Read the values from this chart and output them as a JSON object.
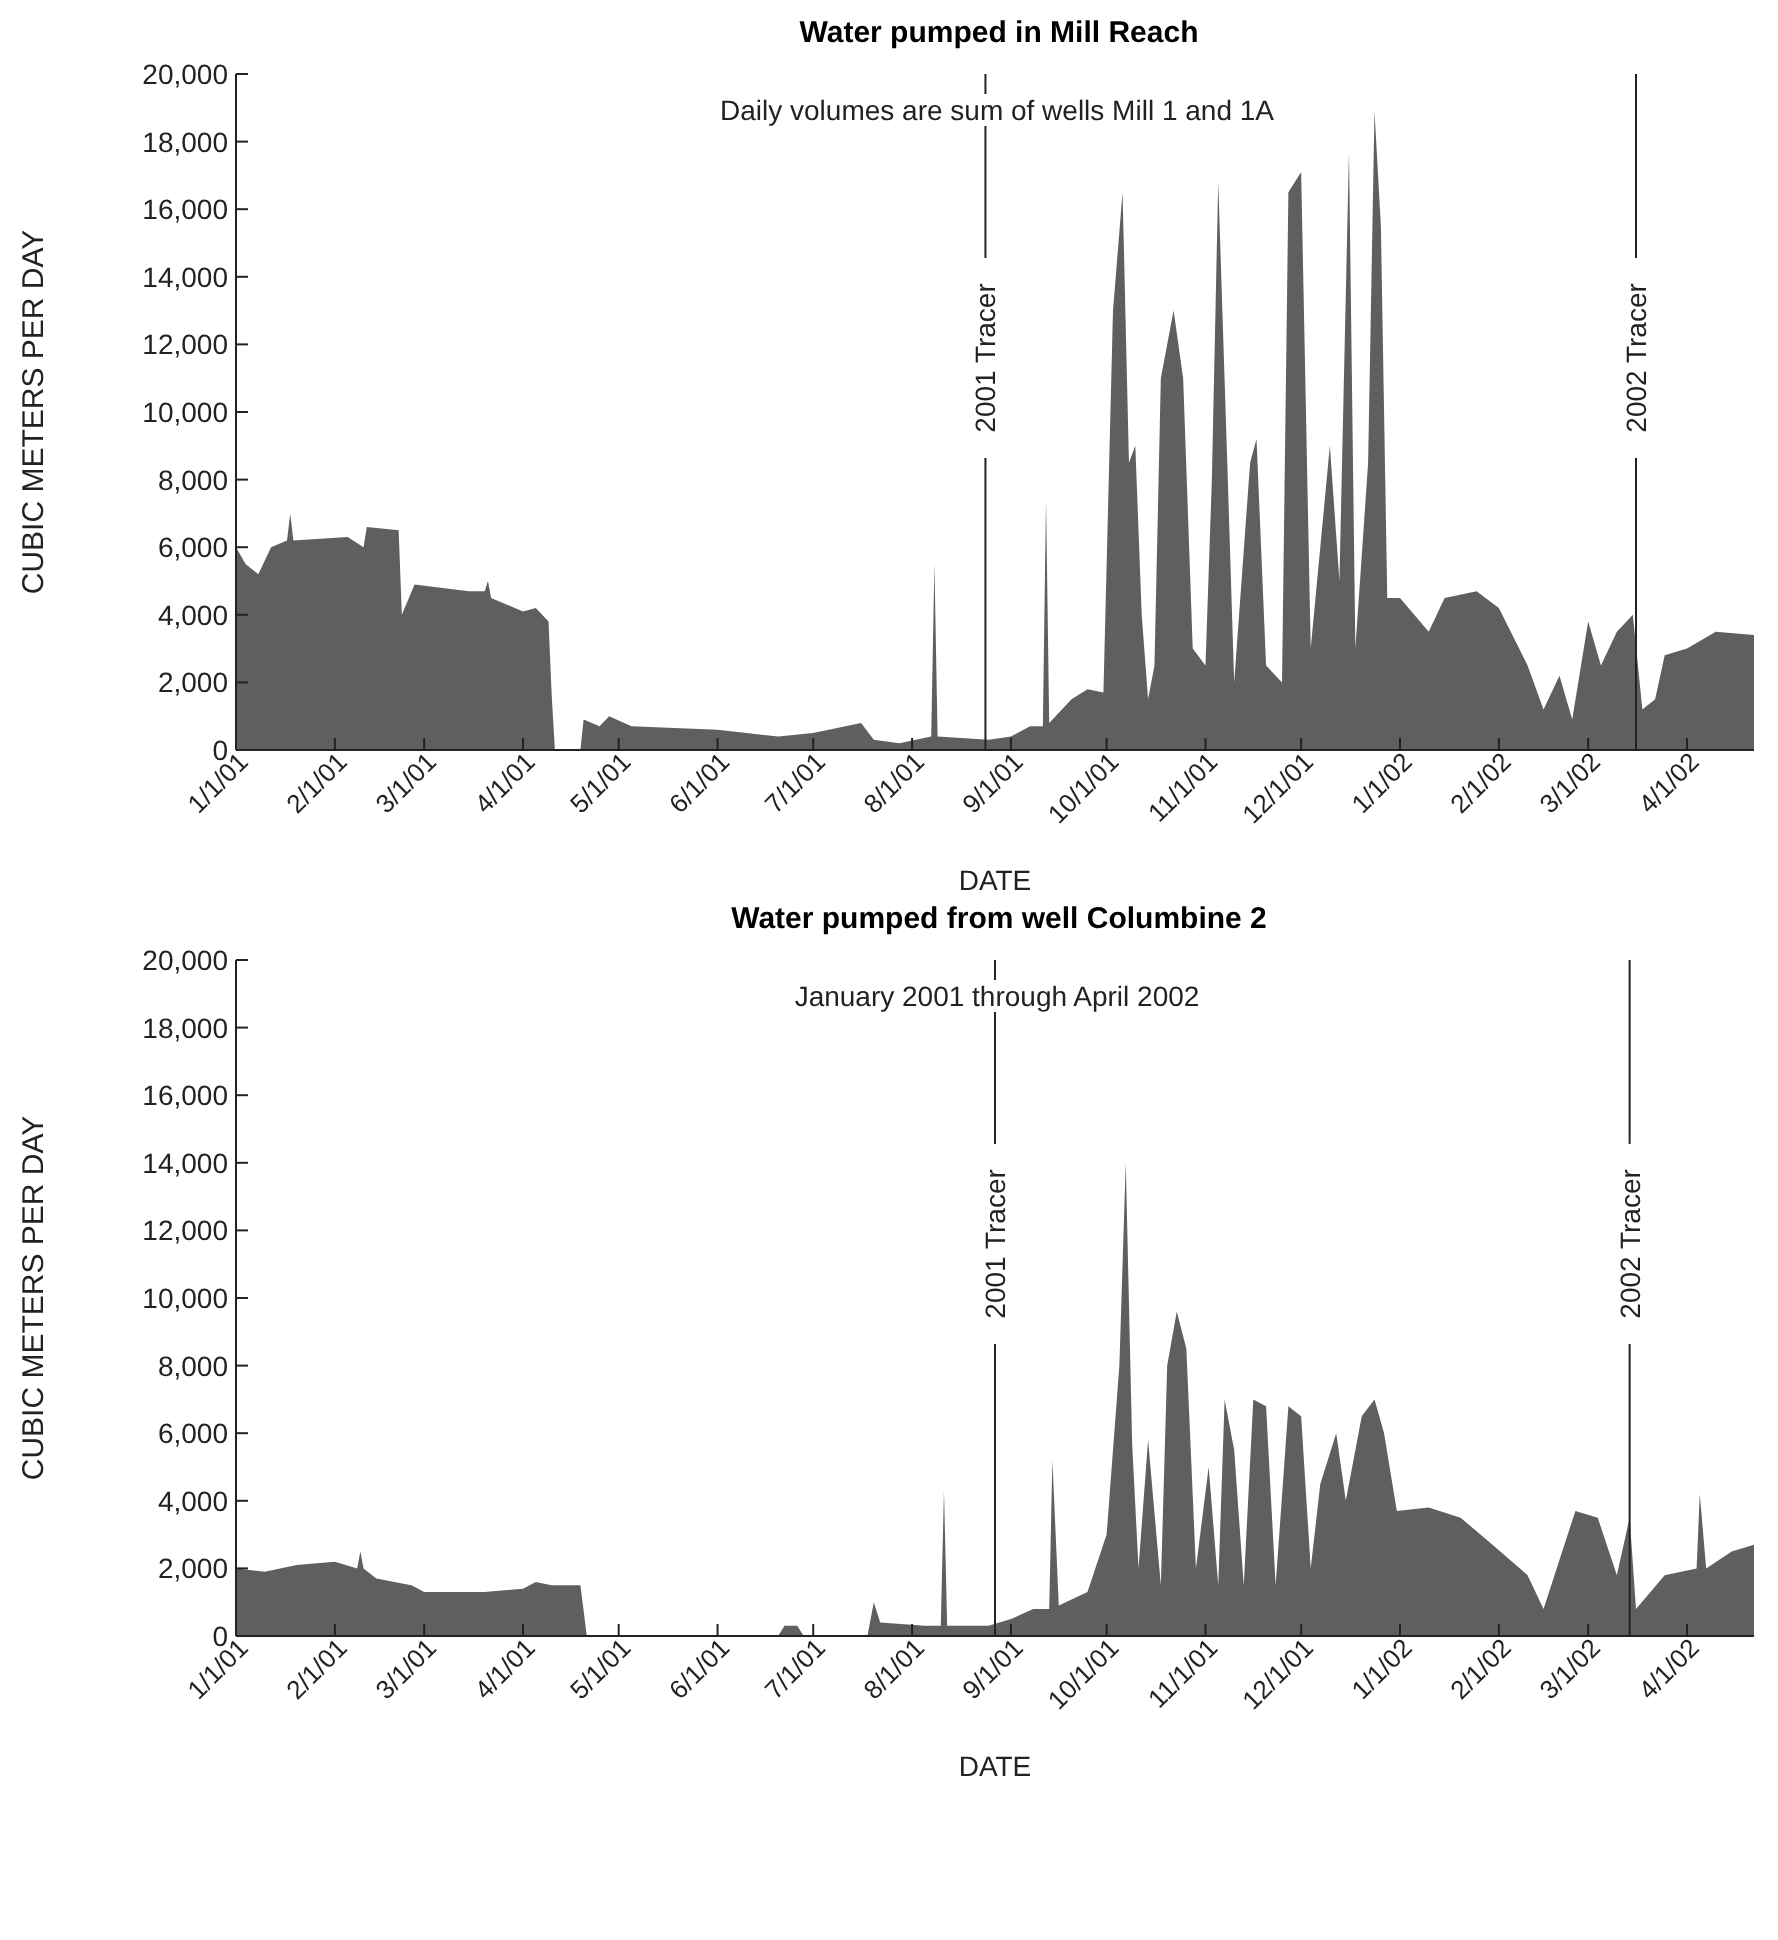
{
  "chart_data": [
    {
      "type": "area",
      "title": "Water pumped in Mill Reach",
      "subtitle": "Daily volumes are sum of wells Mill 1 and 1A",
      "xlabel": "DATE",
      "ylabel": "CUBIC METERS PER DAY",
      "grid": false,
      "xlim": [
        "2001-01-01",
        "2002-04-22"
      ],
      "xticks": [
        {
          "value": "2001-01-01",
          "label": "1/1/01"
        },
        {
          "value": "2001-02-01",
          "label": "2/1/01"
        },
        {
          "value": "2001-03-01",
          "label": "3/1/01"
        },
        {
          "value": "2001-04-01",
          "label": "4/1/01"
        },
        {
          "value": "2001-05-01",
          "label": "5/1/01"
        },
        {
          "value": "2001-06-01",
          "label": "6/1/01"
        },
        {
          "value": "2001-07-01",
          "label": "7/1/01"
        },
        {
          "value": "2001-08-01",
          "label": "8/1/01"
        },
        {
          "value": "2001-09-01",
          "label": "9/1/01"
        },
        {
          "value": "2001-10-01",
          "label": "10/1/01"
        },
        {
          "value": "2001-11-01",
          "label": "11/1/01"
        },
        {
          "value": "2001-12-01",
          "label": "12/1/01"
        },
        {
          "value": "2002-01-01",
          "label": "1/1/02"
        },
        {
          "value": "2002-02-01",
          "label": "2/1/02"
        },
        {
          "value": "2002-03-01",
          "label": "3/1/02"
        },
        {
          "value": "2002-04-01",
          "label": "4/1/02"
        }
      ],
      "ylim": [
        0,
        20000
      ],
      "yticks": [
        0,
        {
          "value": 2000,
          "label": "2,000"
        },
        {
          "value": 4000,
          "label": "4,000"
        },
        {
          "value": 6000,
          "label": "6,000"
        },
        {
          "value": 8000,
          "label": "8,000"
        },
        {
          "value": 10000,
          "label": "10,000"
        },
        {
          "value": 12000,
          "label": "12,000"
        },
        {
          "value": 14000,
          "label": "14,000"
        },
        {
          "value": 16000,
          "label": "16,000"
        },
        {
          "value": 18000,
          "label": "18,000"
        },
        {
          "value": 20000,
          "label": "20,000"
        }
      ],
      "ref_lines": [
        {
          "axis": "x",
          "value": "2001-08-24",
          "label": "2001 Tracer"
        },
        {
          "axis": "x",
          "value": "2002-03-16",
          "label": "2002 Tracer"
        }
      ],
      "series": [
        {
          "color": "#5f5f5f",
          "x": [
            "2001-01-01",
            "2001-01-04",
            "2001-01-08",
            "2001-01-12",
            "2001-01-17",
            "2001-01-18",
            "2001-01-19",
            "2001-02-05",
            "2001-02-10",
            "2001-02-11",
            "2001-02-21",
            "2001-02-22",
            "2001-02-26",
            "2001-03-15",
            "2001-03-20",
            "2001-03-21",
            "2001-03-22",
            "2001-04-01",
            "2001-04-05",
            "2001-04-09",
            "2001-04-10",
            "2001-04-11",
            "2001-04-12",
            "2001-04-19",
            "2001-04-20",
            "2001-04-25",
            "2001-04-28",
            "2001-05-05",
            "2001-06-01",
            "2001-06-20",
            "2001-07-01",
            "2001-07-16",
            "2001-07-20",
            "2001-07-28",
            "2001-08-07",
            "2001-08-08",
            "2001-08-09",
            "2001-08-25",
            "2001-09-01",
            "2001-09-07",
            "2001-09-11",
            "2001-09-12",
            "2001-09-13",
            "2001-09-20",
            "2001-09-25",
            "2001-09-30",
            "2001-10-03",
            "2001-10-06",
            "2001-10-08",
            "2001-10-10",
            "2001-10-12",
            "2001-10-14",
            "2001-10-16",
            "2001-10-18",
            "2001-10-22",
            "2001-10-25",
            "2001-10-28",
            "2001-11-01",
            "2001-11-03",
            "2001-11-05",
            "2001-11-08",
            "2001-11-10",
            "2001-11-15",
            "2001-11-17",
            "2001-11-20",
            "2001-11-25",
            "2001-11-27",
            "2001-12-01",
            "2001-12-04",
            "2001-12-07",
            "2001-12-10",
            "2001-12-13",
            "2001-12-16",
            "2001-12-18",
            "2001-12-22",
            "2001-12-24",
            "2001-12-26",
            "2001-12-28",
            "2002-01-01",
            "2002-01-10",
            "2002-01-15",
            "2002-01-25",
            "2002-02-01",
            "2002-02-10",
            "2002-02-15",
            "2002-02-20",
            "2002-02-24",
            "2002-03-01",
            "2002-03-05",
            "2002-03-10",
            "2002-03-15",
            "2002-03-18",
            "2002-03-22",
            "2002-03-25",
            "2002-04-01",
            "2002-04-10",
            "2002-04-22"
          ],
          "values": [
            6000,
            5500,
            5200,
            6000,
            6200,
            7000,
            6200,
            6300,
            6000,
            6600,
            6500,
            4000,
            4900,
            4700,
            4700,
            5000,
            4500,
            4100,
            4200,
            3800,
            1600,
            0,
            0,
            0,
            900,
            700,
            1000,
            700,
            600,
            400,
            500,
            800,
            300,
            200,
            400,
            5500,
            400,
            300,
            400,
            700,
            700,
            7400,
            800,
            1500,
            1800,
            1700,
            13000,
            16500,
            8500,
            9000,
            4000,
            1500,
            2500,
            11000,
            13000,
            11000,
            3000,
            2500,
            8000,
            16800,
            8000,
            2000,
            8500,
            9200,
            2500,
            2000,
            16500,
            17100,
            3000,
            6000,
            9000,
            5000,
            17700,
            3000,
            8500,
            18900,
            15500,
            4500,
            4500,
            3500,
            4500,
            4700,
            4200,
            2500,
            1200,
            2200,
            900,
            3800,
            2500,
            3500,
            4000,
            1200,
            1500,
            2800,
            3000,
            3500,
            3400
          ]
        }
      ]
    },
    {
      "type": "area",
      "title": "Water pumped from well Columbine 2",
      "subtitle": "January 2001 through April 2002",
      "xlabel": "DATE",
      "ylabel": "CUBIC METERS PER DAY",
      "grid": false,
      "xlim": [
        "2001-01-01",
        "2002-04-22"
      ],
      "xticks": [
        {
          "value": "2001-01-01",
          "label": "1/1/01"
        },
        {
          "value": "2001-02-01",
          "label": "2/1/01"
        },
        {
          "value": "2001-03-01",
          "label": "3/1/01"
        },
        {
          "value": "2001-04-01",
          "label": "4/1/01"
        },
        {
          "value": "2001-05-01",
          "label": "5/1/01"
        },
        {
          "value": "2001-06-01",
          "label": "6/1/01"
        },
        {
          "value": "2001-07-01",
          "label": "7/1/01"
        },
        {
          "value": "2001-08-01",
          "label": "8/1/01"
        },
        {
          "value": "2001-09-01",
          "label": "9/1/01"
        },
        {
          "value": "2001-10-01",
          "label": "10/1/01"
        },
        {
          "value": "2001-11-01",
          "label": "11/1/01"
        },
        {
          "value": "2001-12-01",
          "label": "12/1/01"
        },
        {
          "value": "2002-01-01",
          "label": "1/1/02"
        },
        {
          "value": "2002-02-01",
          "label": "2/1/02"
        },
        {
          "value": "2002-03-01",
          "label": "3/1/02"
        },
        {
          "value": "2002-04-01",
          "label": "4/1/02"
        }
      ],
      "ylim": [
        0,
        20000
      ],
      "yticks": [
        0,
        {
          "value": 2000,
          "label": "2,000"
        },
        {
          "value": 4000,
          "label": "4,000"
        },
        {
          "value": 6000,
          "label": "6,000"
        },
        {
          "value": 8000,
          "label": "8,000"
        },
        {
          "value": 10000,
          "label": "10,000"
        },
        {
          "value": 12000,
          "label": "12,000"
        },
        {
          "value": 14000,
          "label": "14,000"
        },
        {
          "value": 16000,
          "label": "16,000"
        },
        {
          "value": 18000,
          "label": "18,000"
        },
        {
          "value": 20000,
          "label": "20,000"
        }
      ],
      "ref_lines": [
        {
          "axis": "x",
          "value": "2001-08-27",
          "label": "2001 Tracer"
        },
        {
          "axis": "x",
          "value": "2002-03-14",
          "label": "2002 Tracer"
        }
      ],
      "series": [
        {
          "color": "#5f5f5f",
          "x": [
            "2001-01-01",
            "2001-01-10",
            "2001-01-20",
            "2001-02-01",
            "2001-02-08",
            "2001-02-09",
            "2001-02-10",
            "2001-02-14",
            "2001-02-25",
            "2001-03-01",
            "2001-03-20",
            "2001-04-01",
            "2001-04-05",
            "2001-04-10",
            "2001-04-19",
            "2001-04-21",
            "2001-06-20",
            "2001-06-22",
            "2001-06-26",
            "2001-06-28",
            "2001-07-18",
            "2001-07-20",
            "2001-07-22",
            "2001-08-05",
            "2001-08-10",
            "2001-08-11",
            "2001-08-12",
            "2001-08-25",
            "2001-09-01",
            "2001-09-08",
            "2001-09-13",
            "2001-09-14",
            "2001-09-16",
            "2001-09-25",
            "2001-10-01",
            "2001-10-05",
            "2001-10-07",
            "2001-10-09",
            "2001-10-11",
            "2001-10-14",
            "2001-10-18",
            "2001-10-20",
            "2001-10-23",
            "2001-10-26",
            "2001-10-29",
            "2001-11-02",
            "2001-11-05",
            "2001-11-07",
            "2001-11-10",
            "2001-11-13",
            "2001-11-16",
            "2001-11-20",
            "2001-11-23",
            "2001-11-27",
            "2001-12-01",
            "2001-12-04",
            "2001-12-07",
            "2001-12-12",
            "2001-12-15",
            "2001-12-20",
            "2001-12-24",
            "2001-12-27",
            "2001-12-31",
            "2002-01-10",
            "2002-01-20",
            "2002-01-30",
            "2002-02-10",
            "2002-02-15",
            "2002-02-25",
            "2002-03-04",
            "2002-03-10",
            "2002-03-14",
            "2002-03-16",
            "2002-03-25",
            "2002-04-04",
            "2002-04-05",
            "2002-04-07",
            "2002-04-15",
            "2002-04-22"
          ],
          "values": [
            2000,
            1900,
            2100,
            2200,
            2000,
            2500,
            2000,
            1700,
            1500,
            1300,
            1300,
            1400,
            1600,
            1500,
            1500,
            0,
            0,
            300,
            300,
            0,
            0,
            1000,
            400,
            300,
            300,
            4300,
            300,
            300,
            500,
            800,
            800,
            5200,
            900,
            1300,
            3000,
            8000,
            14000,
            5700,
            2000,
            5800,
            1500,
            8000,
            9600,
            8500,
            2000,
            5000,
            1500,
            7000,
            5500,
            1500,
            7000,
            6800,
            1500,
            6800,
            6500,
            2000,
            4500,
            6000,
            4000,
            6500,
            7000,
            6000,
            3700,
            3800,
            3500,
            2700,
            1800,
            800,
            3700,
            3500,
            1800,
            3500,
            800,
            1800,
            2000,
            4200,
            2000,
            2500,
            2700
          ]
        }
      ]
    }
  ]
}
